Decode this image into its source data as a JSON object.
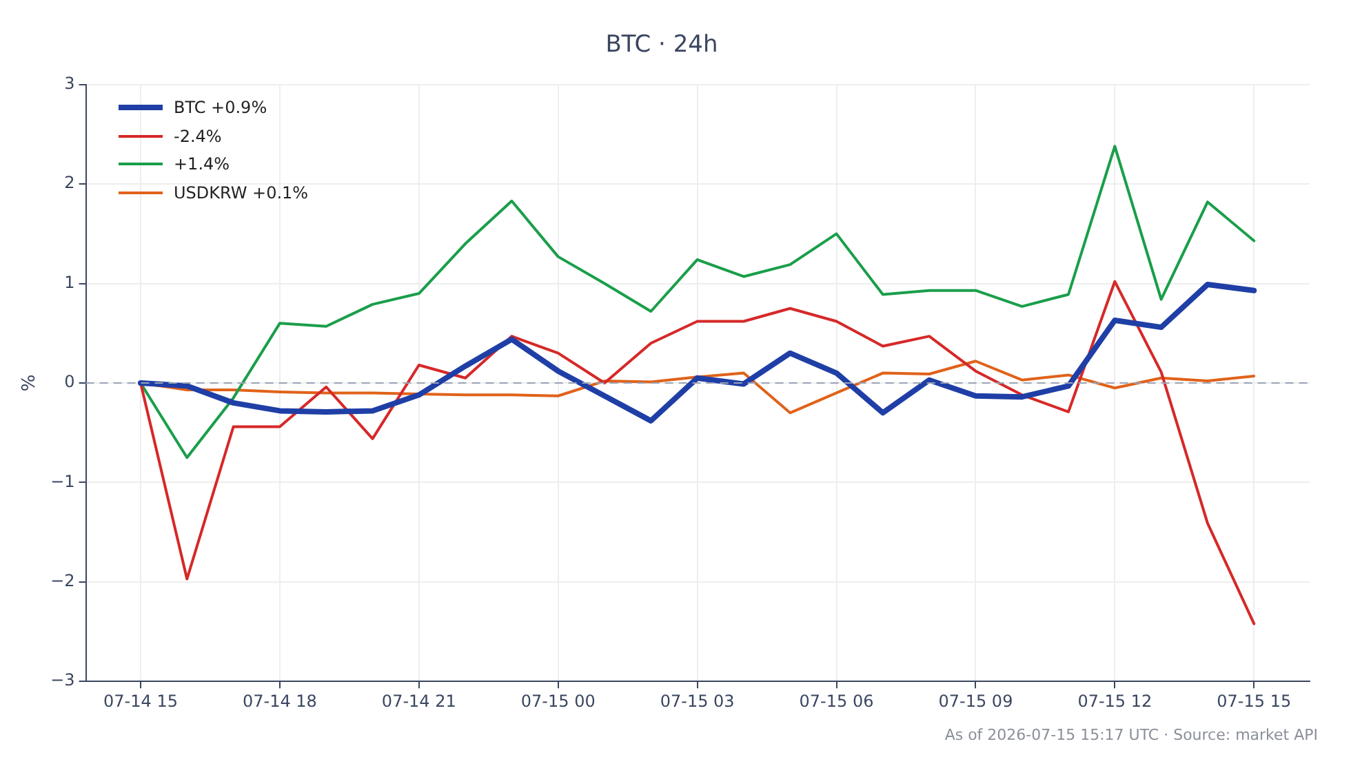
{
  "chart_data": {
    "type": "line",
    "title": "BTC · 24h",
    "ylabel": "%",
    "categories": [
      "07-14 15",
      null,
      null,
      "07-14 18",
      null,
      null,
      "07-14 21",
      null,
      null,
      "07-15 00",
      null,
      null,
      "07-15 03",
      null,
      null,
      "07-15 06",
      null,
      null,
      "07-15 09",
      null,
      null,
      "07-15 12",
      null,
      null,
      "07-15 15"
    ],
    "ylim": [
      -3,
      3
    ],
    "yticks": [
      {
        "value": -3,
        "label": "−3"
      },
      {
        "value": -2,
        "label": "−2"
      },
      {
        "value": -1,
        "label": "−1"
      },
      0,
      1,
      2,
      3
    ],
    "series": [
      {
        "name": "BTC +0.9%",
        "color": "#1f3fa6",
        "values": [
          0,
          -0.03,
          -0.2,
          -0.28,
          -0.29,
          -0.28,
          -0.12,
          0.17,
          0.44,
          0.12,
          -0.13,
          -0.38,
          0.05,
          -0.01,
          0.3,
          0.1,
          -0.3,
          0.03,
          -0.13,
          -0.14,
          -0.03,
          0.63,
          0.56,
          0.99,
          0.93
        ]
      },
      {
        "name": "-2.4%",
        "color": "#d62828",
        "values": [
          0,
          -1.97,
          -0.44,
          -0.44,
          -0.04,
          -0.56,
          0.18,
          0.05,
          0.47,
          0.3,
          0.0,
          0.4,
          0.62,
          0.62,
          0.75,
          0.62,
          0.37,
          0.47,
          0.12,
          -0.12,
          -0.29,
          1.02,
          0.11,
          -1.41,
          -2.42
        ]
      },
      {
        "name": "+1.4%",
        "color": "#1a9e4a",
        "values": [
          0,
          -0.75,
          -0.15,
          0.6,
          0.57,
          0.79,
          0.9,
          1.4,
          1.83,
          1.27,
          1.0,
          0.72,
          1.24,
          1.07,
          1.19,
          1.5,
          0.89,
          0.93,
          0.93,
          0.77,
          0.89,
          2.38,
          0.84,
          1.82,
          1.43
        ]
      },
      {
        "name": "USDKRW +0.1%",
        "color": "#e0621a",
        "values": [
          0,
          -0.07,
          -0.07,
          -0.09,
          -0.1,
          -0.1,
          -0.11,
          -0.12,
          -0.12,
          -0.13,
          0.02,
          0.01,
          0.06,
          0.1,
          -0.3,
          -0.1,
          0.1,
          0.09,
          0.22,
          0.03,
          0.08,
          -0.05,
          0.05,
          0.02,
          0.07
        ]
      }
    ],
    "ref_lines": [
      {
        "axis": "y",
        "value": 0,
        "color": "#9aa3b5",
        "line_style": "dashed"
      }
    ],
    "grid": true,
    "legend": "top left",
    "marker": "none",
    "line_style": "solid",
    "annotations": [
      "As of 2026-07-15 15:17 UTC · Source: market API"
    ]
  }
}
